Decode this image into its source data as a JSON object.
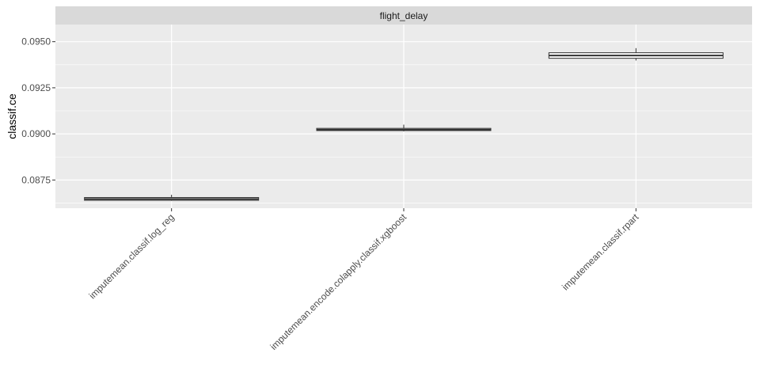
{
  "chart_data": {
    "type": "boxplot",
    "facet": "flight_delay",
    "xlabel": "",
    "ylabel": "classif.ce",
    "ylim": [
      0.08597,
      0.09593
    ],
    "y_ticks": [
      0.0875,
      0.09,
      0.0925,
      0.095
    ],
    "y_tick_labels": [
      "0.0875",
      "0.0900",
      "0.0925",
      "0.0950"
    ],
    "grid": true,
    "categories": [
      "imputemean.classif.log_reg",
      "imputemean.encode.colapply.classif.xgboost",
      "imputemean.classif.rpart"
    ],
    "boxes": [
      {
        "min": 0.08637,
        "q1": 0.0864,
        "median": 0.08647,
        "q3": 0.08655,
        "max": 0.0867
      },
      {
        "min": 0.09014,
        "q1": 0.09018,
        "median": 0.09023,
        "q3": 0.0903,
        "max": 0.0905
      },
      {
        "min": 0.09398,
        "q1": 0.0941,
        "median": 0.09425,
        "q3": 0.0944,
        "max": 0.09465
      }
    ],
    "colors": {
      "panel": "#ebebeb",
      "strip": "#d9d9d9",
      "grid": "#ffffff",
      "box_fill": "#ffffff",
      "box_line": "#333333"
    }
  }
}
